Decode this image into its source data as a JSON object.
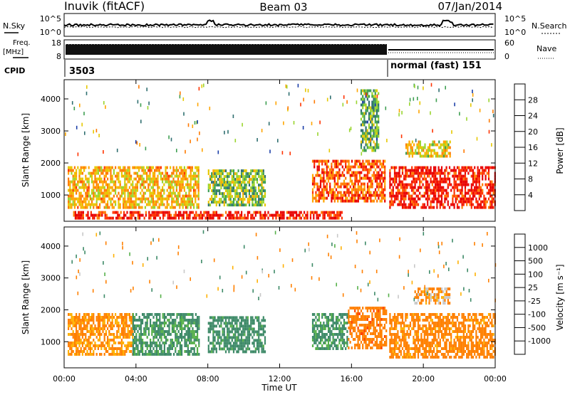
{
  "header": {
    "station": "Inuvik (fitACF)",
    "beam": "Beam 03",
    "date": "07/Jan/2014"
  },
  "noise_panel": {
    "left_label": "N.Sky",
    "left_ticks": [
      "10^5",
      "10^0"
    ],
    "right_label": "N.Search",
    "right_ticks": [
      "10^5",
      "10^0"
    ]
  },
  "freq_panel": {
    "left_label_1": "Freq.",
    "left_label_2": "[MHz]",
    "left_ticks": [
      "18",
      "8"
    ],
    "right_label": "Nave",
    "right_ticks": [
      "60",
      "0"
    ]
  },
  "cpid_panel": {
    "label": "CPID",
    "mode_1": "3503",
    "mode_2": "normal (fast) 151"
  },
  "axes": {
    "ylabel": "Slant Range [km]",
    "xlabel": "Time UT",
    "y_ticks": [
      "1000",
      "2000",
      "3000",
      "4000"
    ],
    "x_ticks": [
      "00:00",
      "04:00",
      "08:00",
      "12:00",
      "16:00",
      "20:00",
      "00:00"
    ]
  },
  "power_colorbar": {
    "label": "Power [dB]",
    "ticks": [
      "28",
      "24",
      "20",
      "16",
      "12",
      "8",
      "4"
    ],
    "colors": [
      "#e80000",
      "#ff3300",
      "#ff7a00",
      "#ffa500",
      "#e6c800",
      "#9ad52f",
      "#3f9f52",
      "#2f6f70",
      "#1c3fa8",
      "#0000ee"
    ]
  },
  "velocity_colorbar": {
    "label": "Velocity [m s⁻¹]",
    "ticks": [
      "1000",
      "500",
      "100",
      "25",
      "-25",
      "-100",
      "-500",
      "-1000"
    ],
    "colors": [
      "#1d3fb0",
      "#2f6f9a",
      "#3e8a68",
      "#56b04a",
      "#c8c8c8",
      "#ffb000",
      "#ff8000",
      "#ff4000",
      "#e80000"
    ]
  },
  "chart_data": [
    {
      "type": "heatmap",
      "title": "Power [dB]",
      "xlabel": "Time UT",
      "ylabel": "Slant Range [km]",
      "x_range_hours": [
        0,
        24
      ],
      "ylim": [
        180,
        4600
      ],
      "x_tick_labels": [
        "00:00",
        "04:00",
        "08:00",
        "12:00",
        "16:00",
        "20:00",
        "00:00"
      ],
      "y_tick_labels": [
        "1000",
        "2000",
        "3000",
        "4000"
      ],
      "colorbar_ticks": [
        4,
        8,
        12,
        16,
        20,
        24,
        28
      ],
      "echo_regions": [
        {
          "t_start": 0.2,
          "t_end": 7.5,
          "r_min": 600,
          "r_max": 1900,
          "power_db": 20
        },
        {
          "t_start": 8.0,
          "t_end": 11.2,
          "r_min": 700,
          "r_max": 1800,
          "power_db": 14
        },
        {
          "t_start": 0.5,
          "t_end": 15.5,
          "r_min": 250,
          "r_max": 500,
          "power_db": 30
        },
        {
          "t_start": 13.8,
          "t_end": 17.9,
          "r_min": 800,
          "r_max": 2100,
          "power_db": 26
        },
        {
          "t_start": 18.1,
          "t_end": 24.0,
          "r_min": 600,
          "r_max": 1900,
          "power_db": 30
        },
        {
          "t_start": 19.0,
          "t_end": 21.5,
          "r_min": 2200,
          "r_max": 2700,
          "power_db": 18
        },
        {
          "t_start": 16.5,
          "t_end": 17.5,
          "r_min": 2400,
          "r_max": 4300,
          "power_db": 12
        }
      ]
    },
    {
      "type": "heatmap",
      "title": "Velocity [m s-1]",
      "xlabel": "Time UT",
      "ylabel": "Slant Range [km]",
      "x_range_hours": [
        0,
        24
      ],
      "ylim": [
        180,
        4600
      ],
      "x_tick_labels": [
        "00:00",
        "04:00",
        "08:00",
        "12:00",
        "16:00",
        "20:00",
        "00:00"
      ],
      "y_tick_labels": [
        "1000",
        "2000",
        "3000",
        "4000"
      ],
      "colorbar_ticks": [
        1000,
        500,
        100,
        25,
        -25,
        -100,
        -500,
        -1000
      ],
      "echo_regions": [
        {
          "t_start": 0.2,
          "t_end": 3.8,
          "r_min": 600,
          "r_max": 1900,
          "velocity": -150
        },
        {
          "t_start": 3.8,
          "t_end": 7.5,
          "r_min": 600,
          "r_max": 1900,
          "velocity": 150
        },
        {
          "t_start": 8.0,
          "t_end": 11.2,
          "r_min": 700,
          "r_max": 1800,
          "velocity": 200
        },
        {
          "t_start": 13.8,
          "t_end": 15.8,
          "r_min": 800,
          "r_max": 1900,
          "velocity": 150
        },
        {
          "t_start": 15.8,
          "t_end": 17.9,
          "r_min": 800,
          "r_max": 2100,
          "velocity": -400
        },
        {
          "t_start": 18.1,
          "t_end": 24.0,
          "r_min": 500,
          "r_max": 1900,
          "velocity": -200
        },
        {
          "t_start": 19.5,
          "t_end": 21.5,
          "r_min": 2200,
          "r_max": 2700,
          "velocity": -100
        }
      ]
    }
  ]
}
